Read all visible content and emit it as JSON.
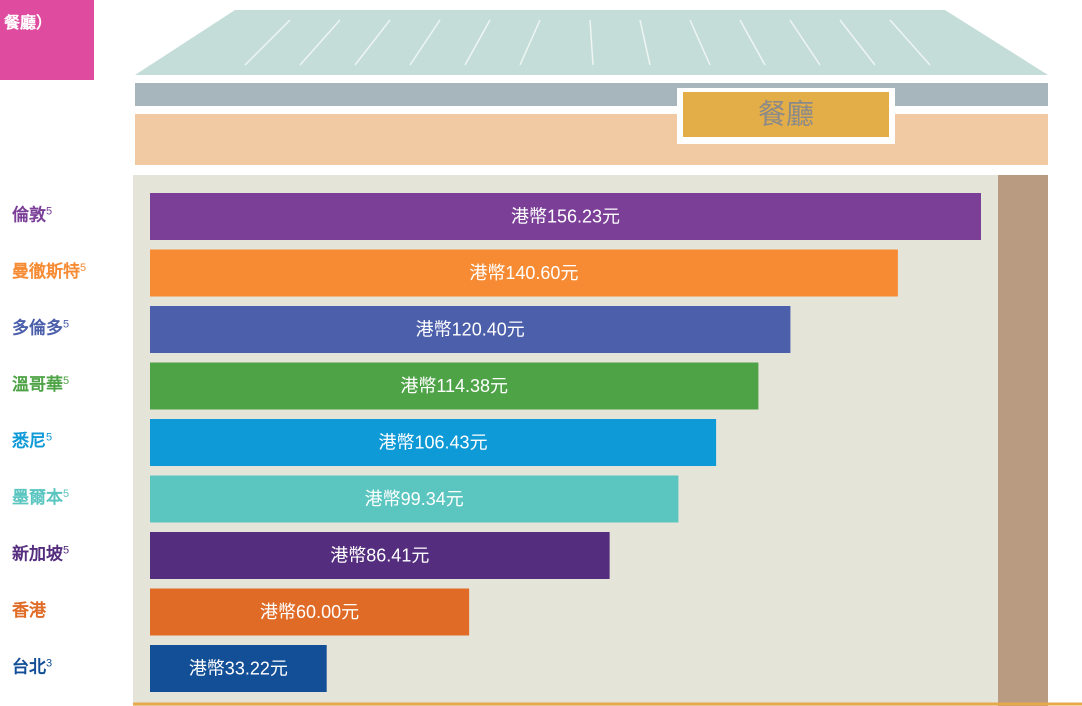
{
  "chart_data": {
    "type": "bar",
    "orientation": "horizontal",
    "corner_label": "餐廳）",
    "sign_label": "餐廳",
    "categories": [
      "倫敦",
      "曼徹斯特",
      "多倫多",
      "溫哥華",
      "悉尼",
      "墨爾本",
      "新加坡",
      "香港",
      "台北"
    ],
    "category_notes": [
      "5",
      "5",
      "5",
      "5",
      "5",
      "5",
      "5",
      null,
      "3"
    ],
    "values": [
      156.23,
      140.6,
      120.4,
      114.38,
      106.43,
      99.34,
      86.41,
      60.0,
      33.22
    ],
    "value_labels": [
      "港幣156.23元",
      "港幣140.60元",
      "港幣120.40元",
      "港幣114.38元",
      "港幣106.43元",
      "港幣99.34元",
      "港幣86.41元",
      "港幣60.00元",
      "港幣33.22元"
    ],
    "colors": [
      "#7b3f98",
      "#f68b33",
      "#4b5fab",
      "#4ea346",
      "#0e9ad7",
      "#5bc5c0",
      "#552d7e",
      "#e06b26",
      "#124f96"
    ]
  }
}
